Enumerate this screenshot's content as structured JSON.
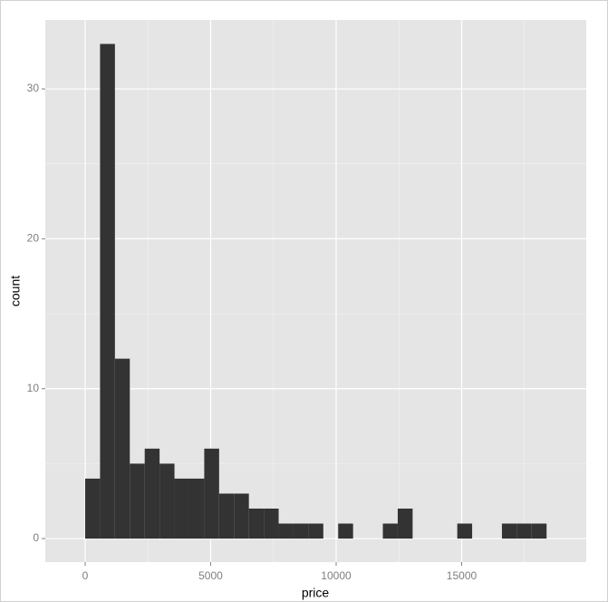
{
  "chart_data": {
    "type": "histogram",
    "x_label": "price",
    "y_label": "count",
    "bins": [
      0,
      593,
      1186,
      1779,
      2372,
      2965,
      3558,
      4151,
      4744,
      5337,
      5930,
      6523,
      7116,
      7709,
      8302,
      8895,
      9488,
      10081,
      10674,
      11267,
      11860,
      12453,
      13046,
      13639,
      14232,
      14825,
      15418,
      16011,
      16604,
      17197,
      17790,
      18383
    ],
    "values": [
      4,
      33,
      12,
      5,
      6,
      5,
      4,
      4,
      6,
      3,
      3,
      2,
      2,
      1,
      1,
      1,
      0,
      1,
      0,
      0,
      1,
      2,
      0,
      0,
      0,
      1,
      0,
      0,
      1,
      1,
      1
    ],
    "color": "#333333",
    "xlim": [
      -1588,
      19964
    ],
    "ylim": [
      -1.57,
      34.6
    ],
    "xticks": [
      0,
      5000,
      10000,
      15000
    ],
    "yticks": [
      0,
      10,
      20,
      30
    ],
    "minor_xticks": [
      2500,
      7500,
      12500,
      17500
    ],
    "minor_yticks": [
      5,
      15,
      25
    ],
    "grid": true
  }
}
